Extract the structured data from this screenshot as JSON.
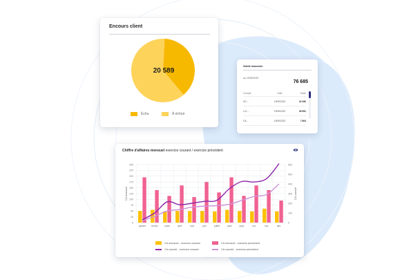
{
  "colors": {
    "pie_main": "#f6b900",
    "pie_light": "#fdd35a",
    "bar_current": "#fdc000",
    "bar_previous": "#f06292",
    "line_current": "#8e24aa",
    "line_previous": "#ce93d8",
    "grid": "#e6e8ee",
    "accent": "#2b2d7e"
  },
  "encours": {
    "title": "Encours client",
    "total": "20 589",
    "legend": [
      {
        "label": "Échu",
        "color": "#f6b900"
      },
      {
        "label": "À échoir",
        "color": "#fdd35a"
      }
    ]
  },
  "solde": {
    "title": "Solde bancaire",
    "date": "au 19/05/2022",
    "total": "76 685",
    "columns": [
      "Compte",
      "Date",
      "Solde"
    ],
    "rows": [
      {
        "account": "SG…",
        "date": "19/05/2022",
        "amount": "32 490"
      },
      {
        "account": "LCL…",
        "date": "19/05/2022",
        "amount": "36 591"
      },
      {
        "account": "CA…",
        "date": "19/05/2022",
        "amount": "7 604"
      }
    ]
  },
  "ca": {
    "title_bold": "Chiffre d'affaires mensuel",
    "title_rest": "exercice courant / exercice précédent",
    "eye_icon": "eye-icon",
    "legend": [
      {
        "label": "CA mensuel - exercice courant",
        "kind": "bar",
        "color": "#fdc000"
      },
      {
        "label": "CA mensuel - exercice précédent",
        "kind": "bar",
        "color": "#f06292"
      },
      {
        "label": "CA cumulé - exercice courant",
        "kind": "line",
        "color": "#8e24aa"
      },
      {
        "label": "CA cumulé - exercice précédent",
        "kind": "line",
        "color": "#ce93d8"
      }
    ]
  },
  "chart_data": [
    {
      "type": "pie",
      "labels": [
        "Échu",
        "À échoir"
      ],
      "values": [
        38,
        62
      ],
      "total_label": "20 589"
    },
    {
      "type": "bar",
      "categories": [
        "janvier",
        "février",
        "mars",
        "avril",
        "mai",
        "juin",
        "juillet",
        "août",
        "sept.",
        "oct.",
        "nov.",
        "déc."
      ],
      "ylabel": "CA mensuel",
      "y2label": "CA cumulé",
      "yticks": [
        "250",
        "225",
        "200",
        "175",
        "150",
        "125",
        "100",
        "75",
        "50",
        "25",
        "0"
      ],
      "y2ticks": [
        "600",
        "500",
        "400",
        "300",
        "200",
        "100",
        "0"
      ],
      "ylim": [
        0,
        250
      ],
      "y2lim": [
        0,
        600
      ],
      "grid": true,
      "legend_position": "bottom",
      "series": [
        {
          "name": "CA mensuel - exercice courant",
          "kind": "bar",
          "axis": "left",
          "values": [
            50,
            55,
            48,
            50,
            50,
            50,
            48,
            55,
            50,
            48,
            60,
            48
          ]
        },
        {
          "name": "CA mensuel - exercice précédent",
          "kind": "bar",
          "axis": "left",
          "values": [
            195,
            140,
            115,
            160,
            110,
            175,
            130,
            195,
            115,
            160,
            140,
            95
          ]
        },
        {
          "name": "CA cumulé - exercice courant",
          "kind": "line",
          "axis": "right",
          "values": [
            30,
            100,
            215,
            185,
            200,
            220,
            230,
            350,
            425,
            420,
            455,
            610
          ]
        },
        {
          "name": "CA cumulé - exercice précédent",
          "kind": "line",
          "axis": "right",
          "values": [
            20,
            65,
            120,
            135,
            160,
            170,
            175,
            190,
            230,
            270,
            290,
            400
          ]
        }
      ]
    }
  ]
}
